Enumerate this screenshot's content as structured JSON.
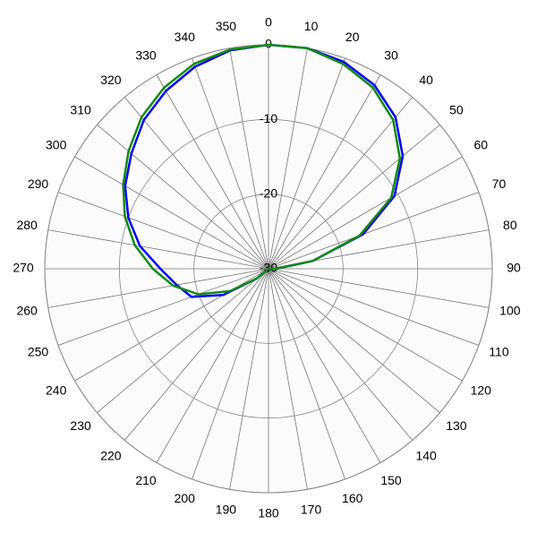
{
  "chart_data": {
    "type": "polar",
    "angles": [
      0,
      10,
      20,
      30,
      40,
      50,
      60,
      70,
      80,
      90,
      100,
      110,
      120,
      130,
      140,
      150,
      160,
      170,
      180,
      190,
      200,
      210,
      220,
      230,
      240,
      250,
      260,
      270,
      280,
      290,
      300,
      310,
      320,
      330,
      340,
      350
    ],
    "rlim": [
      -30,
      0
    ],
    "rticks": [
      -30,
      -20,
      -10,
      0
    ],
    "direction": "clockwise",
    "zero_location": "top",
    "grid": true,
    "series": [
      {
        "color": "#0000ff",
        "values": [
          0,
          0,
          -0.5,
          -1.6,
          -3.5,
          -6.5,
          -10.5,
          -16.5,
          -24,
          -29,
          -30,
          -30,
          -30,
          -30,
          -30,
          -30,
          -30,
          -30,
          -30,
          -30,
          -30,
          -30,
          -30,
          -28,
          -23,
          -19,
          -17.5,
          -15.5,
          -12.5,
          -10,
          -7.8,
          -6,
          -4,
          -2.5,
          -1.2,
          -0.3
        ]
      },
      {
        "color": "#138a13",
        "values": [
          0,
          0,
          -0.8,
          -2,
          -4,
          -7,
          -11,
          -17,
          -24,
          -29,
          -30,
          -30,
          -30,
          -30,
          -30,
          -30,
          -30,
          -30,
          -30,
          -30,
          -30,
          -30,
          -30,
          -28,
          -24,
          -20,
          -17,
          -14.5,
          -11.8,
          -9.5,
          -7.5,
          -5.5,
          -3.5,
          -2,
          -0.8,
          -0.2
        ]
      }
    ]
  }
}
